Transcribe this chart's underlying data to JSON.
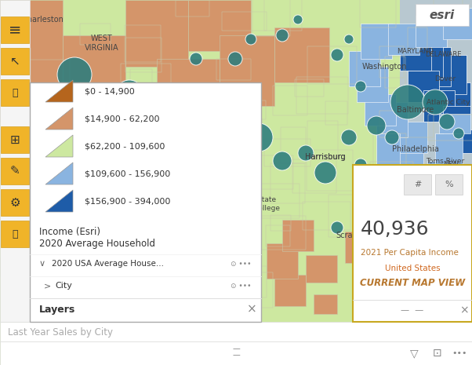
{
  "title": "Last Year Sales by City",
  "fig_w": 6.02,
  "fig_h": 4.65,
  "dpi": 100,
  "map_bg": "#d4e8b8",
  "toolbar_bg": "#ffffff",
  "yellow_btn_color": "#f0b429",
  "layers_title": "Layers",
  "layer1_name": "City",
  "layer2_name": "2020 USA Average House...",
  "legend_title_line1": "2020 Average Household",
  "legend_title_line2": "Income (Esri)",
  "legend_items": [
    {
      "label": "$156,900 - 394,000",
      "color": "#1e5ca8"
    },
    {
      "label": "$109,600 - 156,900",
      "color": "#8ab4e0"
    },
    {
      "label": "$62,200 - 109,600",
      "color": "#cde8a0"
    },
    {
      "label": "$14,900 - 62,200",
      "color": "#d4956a"
    },
    {
      "label": "$0 - 14,900",
      "color": "#b5651d"
    }
  ],
  "info_title": "CURRENT MAP VIEW",
  "info_subtitle": "United States",
  "info_label": "2021 Per Capita Income",
  "info_value": "40,936",
  "teal_color": "#2d7d7d",
  "county_edge": "#c8c8aa",
  "orange_patch": "#d4956a",
  "light_green": "#cde8a0",
  "blue_patch": "#1e5ca8",
  "light_blue_patch": "#8ab4e0",
  "gray_patch": "#b8c8d0",
  "dark_gray": "#888899"
}
